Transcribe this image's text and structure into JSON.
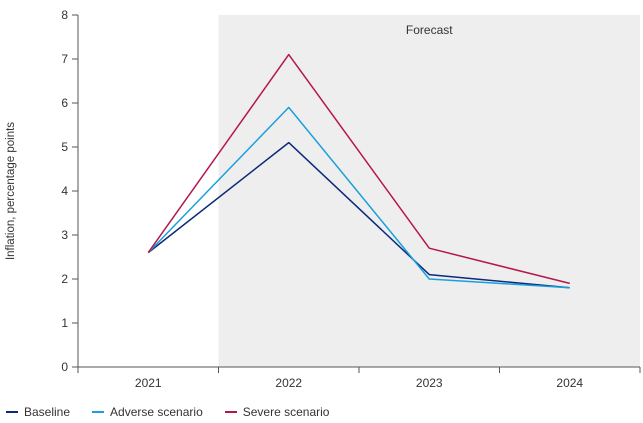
{
  "chart_data": {
    "type": "line",
    "categories": [
      "2021",
      "2022",
      "2023",
      "2024"
    ],
    "ylabel": "Inflation, percentage points",
    "ylim": [
      0,
      8
    ],
    "yticks": [
      0,
      1,
      2,
      3,
      4,
      5,
      6,
      7,
      8
    ],
    "forecast_label": "Forecast",
    "forecast_start": "2022",
    "series": [
      {
        "name": "Baseline",
        "color": "#0a2a7a",
        "values": [
          2.6,
          5.1,
          2.1,
          1.8
        ]
      },
      {
        "name": "Adverse scenario",
        "color": "#1a9fdc",
        "values": [
          2.6,
          5.9,
          2.0,
          1.8
        ]
      },
      {
        "name": "Severe scenario",
        "color": "#b5174b",
        "values": [
          2.6,
          7.1,
          2.7,
          1.9
        ]
      }
    ],
    "legend_position": "bottom-left"
  }
}
